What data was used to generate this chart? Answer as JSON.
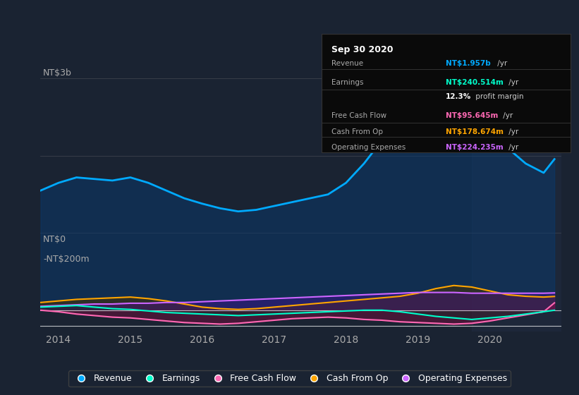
{
  "background_color": "#1a2332",
  "plot_bg_color": "#1a2332",
  "y_label_top": "NT$3b",
  "y_label_zero": "NT$0",
  "y_label_neg": "-NT$200m",
  "x_ticks": [
    2014,
    2015,
    2016,
    2017,
    2018,
    2019,
    2020
  ],
  "legend": [
    {
      "label": "Revenue",
      "color": "#00aaff"
    },
    {
      "label": "Earnings",
      "color": "#00ffcc"
    },
    {
      "label": "Free Cash Flow",
      "color": "#ff69b4"
    },
    {
      "label": "Cash From Op",
      "color": "#ffa500"
    },
    {
      "label": "Operating Expenses",
      "color": "#cc66ff"
    }
  ],
  "series": {
    "x": [
      2013.75,
      2014.0,
      2014.25,
      2014.5,
      2014.75,
      2015.0,
      2015.25,
      2015.5,
      2015.75,
      2016.0,
      2016.25,
      2016.5,
      2016.75,
      2017.0,
      2017.25,
      2017.5,
      2017.75,
      2018.0,
      2018.25,
      2018.5,
      2018.75,
      2019.0,
      2019.25,
      2019.5,
      2019.75,
      2020.0,
      2020.25,
      2020.5,
      2020.75,
      2020.9
    ],
    "revenue": [
      1.55,
      1.65,
      1.72,
      1.7,
      1.68,
      1.72,
      1.65,
      1.55,
      1.45,
      1.38,
      1.32,
      1.28,
      1.3,
      1.35,
      1.4,
      1.45,
      1.5,
      1.65,
      1.9,
      2.2,
      2.5,
      2.8,
      2.9,
      2.85,
      2.65,
      2.35,
      2.1,
      1.9,
      1.78,
      1.957
    ],
    "earnings": [
      0.04,
      0.05,
      0.06,
      0.04,
      0.02,
      0.01,
      -0.01,
      -0.03,
      -0.04,
      -0.05,
      -0.06,
      -0.07,
      -0.06,
      -0.05,
      -0.04,
      -0.03,
      -0.02,
      -0.01,
      0.0,
      0.0,
      -0.02,
      -0.05,
      -0.08,
      -0.1,
      -0.12,
      -0.1,
      -0.08,
      -0.05,
      -0.02,
      0.0
    ],
    "free_cash_flow": [
      0.0,
      -0.02,
      -0.05,
      -0.07,
      -0.09,
      -0.1,
      -0.12,
      -0.14,
      -0.16,
      -0.17,
      -0.18,
      -0.17,
      -0.15,
      -0.13,
      -0.11,
      -0.1,
      -0.09,
      -0.1,
      -0.12,
      -0.13,
      -0.15,
      -0.16,
      -0.17,
      -0.18,
      -0.17,
      -0.14,
      -0.1,
      -0.06,
      -0.02,
      0.095
    ],
    "cash_from_op": [
      0.1,
      0.12,
      0.14,
      0.15,
      0.16,
      0.17,
      0.15,
      0.12,
      0.08,
      0.04,
      0.02,
      0.01,
      0.02,
      0.04,
      0.06,
      0.08,
      0.1,
      0.12,
      0.14,
      0.16,
      0.18,
      0.22,
      0.28,
      0.32,
      0.3,
      0.25,
      0.2,
      0.18,
      0.17,
      0.178
    ],
    "operating_expenses": [
      0.05,
      0.06,
      0.07,
      0.08,
      0.08,
      0.09,
      0.09,
      0.1,
      0.1,
      0.11,
      0.12,
      0.13,
      0.14,
      0.15,
      0.16,
      0.17,
      0.18,
      0.19,
      0.2,
      0.21,
      0.22,
      0.23,
      0.23,
      0.23,
      0.22,
      0.22,
      0.22,
      0.22,
      0.22,
      0.224
    ]
  }
}
